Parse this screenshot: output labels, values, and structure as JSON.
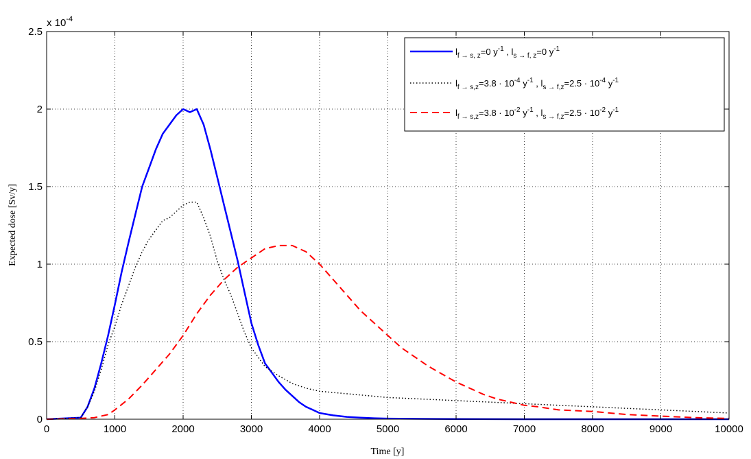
{
  "chart_data": {
    "type": "line",
    "xlabel": "Time [y]",
    "ylabel": "Expected dose [Sv/y]",
    "y_multiplier": "x 10",
    "y_multiplier_exponent": "-4",
    "xlim": [
      0,
      10000
    ],
    "ylim": [
      0,
      2.5
    ],
    "x_ticks": [
      "0",
      "1000",
      "2000",
      "3000",
      "4000",
      "5000",
      "6000",
      "7000",
      "8000",
      "9000",
      "10000"
    ],
    "y_ticks": [
      "0",
      "0.5",
      "1",
      "1.5",
      "2",
      "2.5"
    ],
    "grid": true,
    "grid_style": "dotted",
    "legend_position": "top-right",
    "series": [
      {
        "color": "#0000ff",
        "style": "solid",
        "legend": {
          "a_main": "l",
          "a_sub": "f → s, z",
          "a_val": "=0 y",
          "a_exp": "-1",
          "sep": " , ",
          "b_main": "l",
          "b_sub": "s → f, z",
          "b_val": "=0 y",
          "b_exp": "-1"
        },
        "x": [
          0,
          500,
          600,
          700,
          800,
          900,
          1000,
          1100,
          1200,
          1300,
          1400,
          1500,
          1600,
          1700,
          1800,
          1900,
          2000,
          2100,
          2200,
          2300,
          2400,
          2500,
          2600,
          2700,
          2800,
          2900,
          3000,
          3100,
          3200,
          3300,
          3400,
          3500,
          3600,
          3700,
          3800,
          3900,
          4000,
          4200,
          4400,
          4600,
          4800,
          5000,
          5500,
          6000,
          7000,
          8000,
          9000,
          10000
        ],
        "y": [
          0,
          0.01,
          0.08,
          0.2,
          0.36,
          0.54,
          0.74,
          0.95,
          1.14,
          1.32,
          1.5,
          1.62,
          1.74,
          1.84,
          1.9,
          1.96,
          2.0,
          1.98,
          2.0,
          1.9,
          1.74,
          1.56,
          1.38,
          1.2,
          1.02,
          0.82,
          0.62,
          0.48,
          0.36,
          0.3,
          0.24,
          0.19,
          0.15,
          0.11,
          0.08,
          0.06,
          0.04,
          0.025,
          0.015,
          0.01,
          0.006,
          0.004,
          0.002,
          0.001,
          0,
          0,
          0,
          0
        ]
      },
      {
        "color": "#000000",
        "style": "dotted",
        "legend": {
          "a_main": "l",
          "a_sub": "f → s,z",
          "a_val": "=3.8 · 10",
          "a_exp": "-4",
          "a_unit": " y",
          "a_unit_exp": "-1",
          "sep": "  ,  ",
          "b_main": "l",
          "b_sub": "s → f,z",
          "b_val": "=2.5 · 10",
          "b_exp": "-4",
          "b_unit": " y",
          "b_unit_exp": "-1"
        },
        "x": [
          0,
          500,
          600,
          700,
          800,
          900,
          1000,
          1100,
          1200,
          1300,
          1400,
          1500,
          1600,
          1700,
          1800,
          1900,
          2000,
          2100,
          2200,
          2300,
          2400,
          2500,
          2600,
          2700,
          2800,
          2900,
          3000,
          3100,
          3200,
          3400,
          3600,
          3800,
          4000,
          4500,
          5000,
          5500,
          6000,
          6500,
          7000,
          7500,
          8000,
          8500,
          9000,
          9500,
          10000
        ],
        "y": [
          0,
          0.01,
          0.08,
          0.18,
          0.32,
          0.48,
          0.6,
          0.74,
          0.86,
          0.98,
          1.08,
          1.16,
          1.22,
          1.28,
          1.3,
          1.34,
          1.38,
          1.4,
          1.4,
          1.3,
          1.18,
          1.02,
          0.9,
          0.8,
          0.68,
          0.56,
          0.46,
          0.4,
          0.34,
          0.28,
          0.23,
          0.2,
          0.18,
          0.16,
          0.14,
          0.13,
          0.12,
          0.11,
          0.1,
          0.09,
          0.08,
          0.07,
          0.06,
          0.05,
          0.04
        ]
      },
      {
        "color": "#ff0000",
        "style": "dashed",
        "legend": {
          "a_main": "l",
          "a_sub": "f → s,z",
          "a_val": "=3.8 · 10",
          "a_exp": "-2",
          "a_unit": " y",
          "a_unit_exp": "-1",
          "sep": "  ,  ",
          "b_main": "l",
          "b_sub": "s → f,z",
          "b_val": "=2.5 · 10",
          "b_exp": "-2",
          "b_unit": " y",
          "b_unit_exp": "-1"
        },
        "x": [
          0,
          500,
          700,
          900,
          1000,
          1200,
          1400,
          1600,
          1800,
          2000,
          2200,
          2400,
          2600,
          2800,
          3000,
          3200,
          3400,
          3600,
          3800,
          4000,
          4200,
          4400,
          4600,
          4800,
          5000,
          5200,
          5400,
          5600,
          5800,
          6000,
          6200,
          6400,
          6600,
          6800,
          7000,
          7200,
          7500,
          8000,
          8500,
          9000,
          9500,
          10000
        ],
        "y": [
          0,
          0.005,
          0.01,
          0.03,
          0.06,
          0.13,
          0.22,
          0.32,
          0.42,
          0.54,
          0.68,
          0.8,
          0.9,
          0.98,
          1.04,
          1.1,
          1.12,
          1.12,
          1.08,
          1.0,
          0.9,
          0.8,
          0.7,
          0.62,
          0.54,
          0.46,
          0.4,
          0.34,
          0.29,
          0.24,
          0.2,
          0.16,
          0.13,
          0.11,
          0.09,
          0.08,
          0.06,
          0.05,
          0.03,
          0.02,
          0.01,
          0.005
        ]
      }
    ]
  }
}
